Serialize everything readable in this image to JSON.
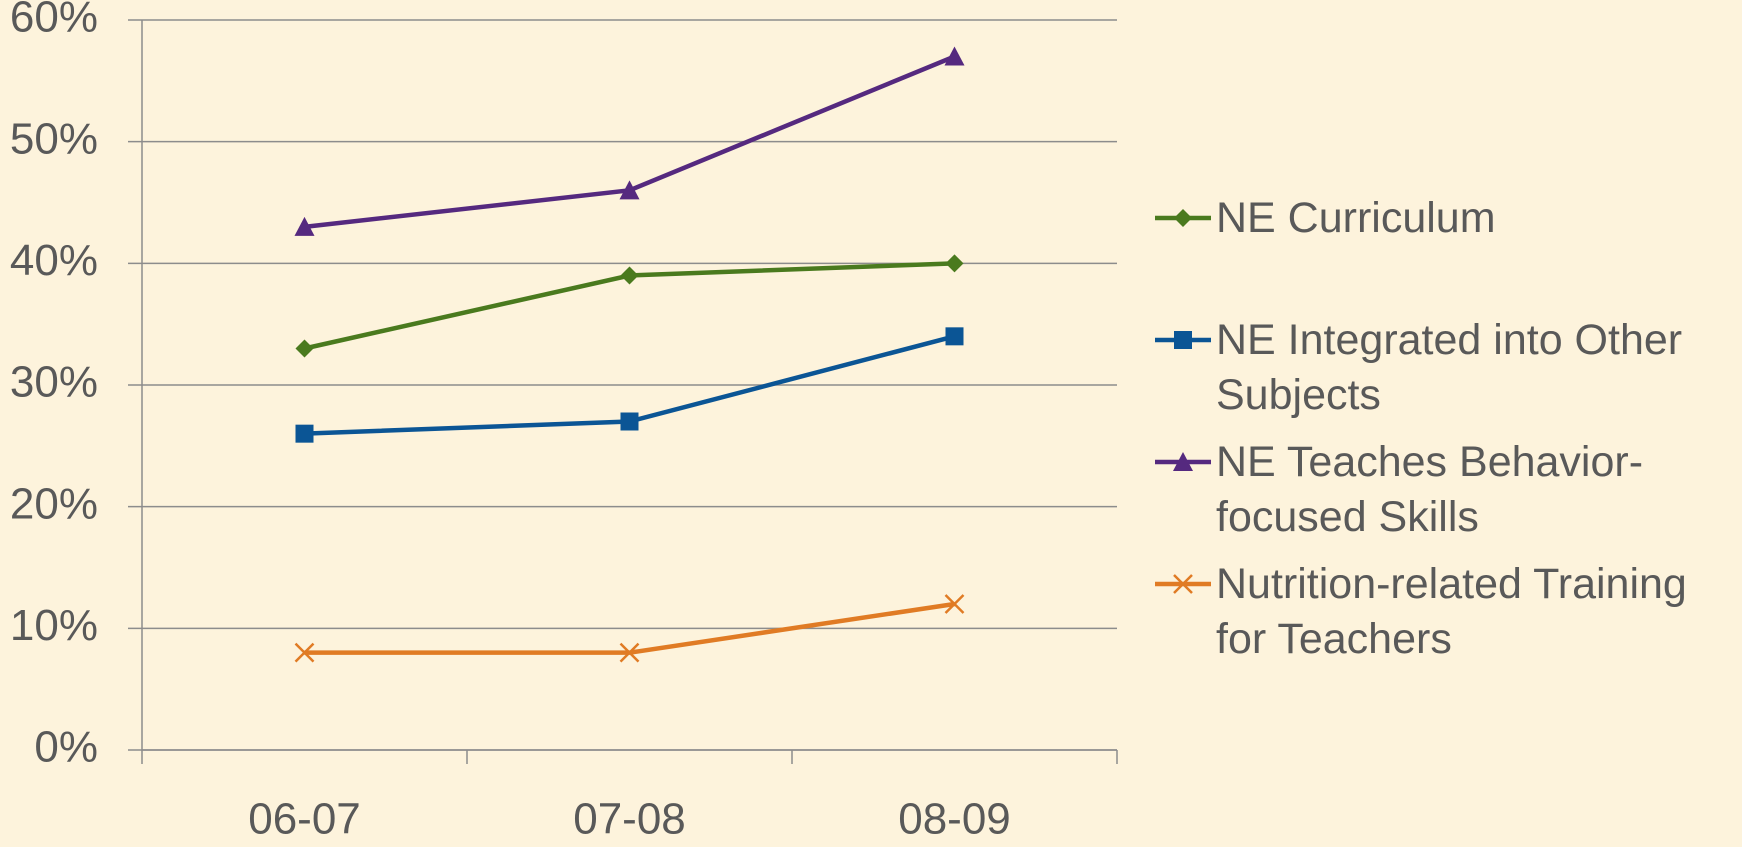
{
  "chart_data": {
    "type": "line",
    "categories": [
      "06-07",
      "07-08",
      "08-09"
    ],
    "series": [
      {
        "name": "NE Curriculum",
        "color": "#4a7a1e",
        "marker": "diamond",
        "values": [
          33,
          39,
          40
        ]
      },
      {
        "name": "NE Integrated into Other Subjects",
        "color": "#0b5595",
        "marker": "square",
        "values": [
          26,
          27,
          34
        ]
      },
      {
        "name": "NE Teaches Behavior-focused Skills",
        "color": "#55297f",
        "marker": "triangle",
        "values": [
          43,
          46,
          57
        ]
      },
      {
        "name": "Nutrition-related Training for Teachers",
        "color": "#e07b24",
        "marker": "x",
        "values": [
          8,
          8,
          12
        ]
      }
    ],
    "ylim": [
      0,
      60
    ],
    "yticks": [
      {
        "value": 0,
        "label": "0%"
      },
      {
        "value": 10,
        "label": "10%"
      },
      {
        "value": 20,
        "label": "20%"
      },
      {
        "value": 30,
        "label": "30%"
      },
      {
        "value": 40,
        "label": "40%"
      },
      {
        "value": 50,
        "label": "50%"
      },
      {
        "value": 60,
        "label": "60%"
      }
    ],
    "grid": true,
    "legend": "right"
  }
}
